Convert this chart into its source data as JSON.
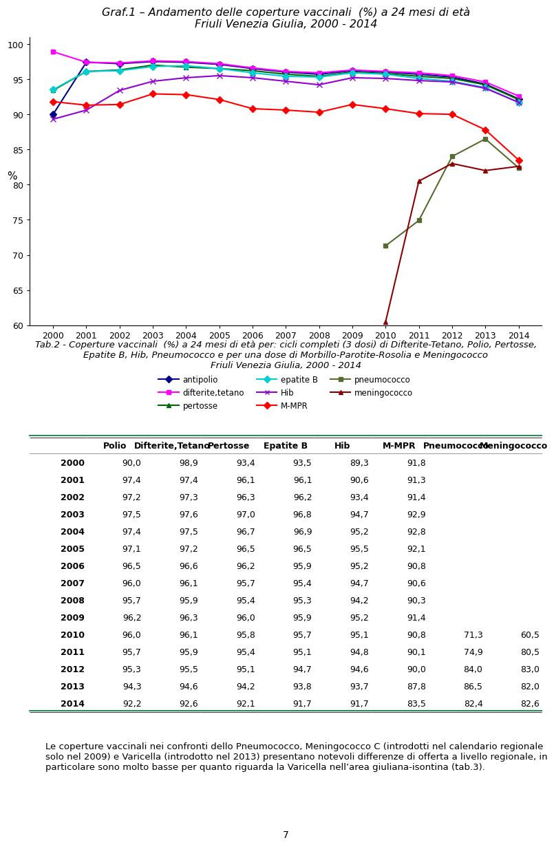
{
  "title_line1": "Graf.1 – Andamento delle coperture vaccinali  (%) a 24 mesi di età",
  "title_line2": "Friuli Venezia Giulia, 2000 - 2014",
  "years": [
    2000,
    2001,
    2002,
    2003,
    2004,
    2005,
    2006,
    2007,
    2008,
    2009,
    2010,
    2011,
    2012,
    2013,
    2014
  ],
  "series": {
    "antipolio": {
      "values": [
        90.0,
        97.4,
        97.2,
        97.5,
        97.4,
        97.1,
        96.5,
        96.0,
        95.7,
        96.2,
        96.0,
        95.7,
        95.3,
        94.3,
        92.2
      ],
      "color": "#00008B",
      "marker": "D",
      "linestyle": "-",
      "linewidth": 1.5,
      "markersize": 5,
      "label": "antipolio"
    },
    "difterite_tetano": {
      "values": [
        98.9,
        97.4,
        97.3,
        97.6,
        97.5,
        97.2,
        96.6,
        96.1,
        95.9,
        96.3,
        96.1,
        95.9,
        95.5,
        94.6,
        92.6
      ],
      "color": "#FF00FF",
      "marker": "s",
      "linestyle": "-",
      "linewidth": 1.5,
      "markersize": 5,
      "label": "difterite,tetano"
    },
    "pertosse": {
      "values": [
        93.4,
        96.1,
        96.3,
        97.0,
        96.7,
        96.5,
        96.2,
        95.7,
        95.4,
        96.0,
        95.8,
        95.4,
        95.1,
        94.2,
        92.1
      ],
      "color": "#006400",
      "marker": "^",
      "linestyle": "-",
      "linewidth": 1.5,
      "markersize": 5,
      "label": "pertosse"
    },
    "epatite_B": {
      "values": [
        93.5,
        96.1,
        96.2,
        96.8,
        96.9,
        96.5,
        95.9,
        95.4,
        95.3,
        95.9,
        95.7,
        95.1,
        94.7,
        93.8,
        91.7
      ],
      "color": "#00CED1",
      "marker": "D",
      "linestyle": "-",
      "linewidth": 1.5,
      "markersize": 5,
      "label": "epatite B"
    },
    "Hib": {
      "values": [
        89.3,
        90.6,
        93.4,
        94.7,
        95.2,
        95.5,
        95.2,
        94.7,
        94.2,
        95.2,
        95.1,
        94.8,
        94.6,
        93.7,
        91.7
      ],
      "color": "#9400D3",
      "marker": "x",
      "linestyle": "-",
      "linewidth": 1.5,
      "markersize": 6,
      "label": "Hib"
    },
    "M_MPR": {
      "values": [
        91.8,
        91.3,
        91.4,
        92.9,
        92.8,
        92.1,
        90.8,
        90.6,
        90.3,
        91.4,
        90.8,
        90.1,
        90.0,
        87.8,
        83.5
      ],
      "color": "#FF0000",
      "marker": "D",
      "linestyle": "-",
      "linewidth": 1.5,
      "markersize": 5,
      "label": "M-MPR"
    },
    "pneumococco": {
      "values": [
        null,
        null,
        null,
        null,
        null,
        null,
        null,
        null,
        null,
        null,
        71.3,
        74.9,
        84.0,
        86.5,
        82.4
      ],
      "color": "#556B2F",
      "marker": "s",
      "linestyle": "-",
      "linewidth": 1.5,
      "markersize": 5,
      "label": "pneumococco"
    },
    "meningococco": {
      "values": [
        null,
        null,
        null,
        null,
        null,
        null,
        null,
        null,
        null,
        null,
        60.5,
        80.5,
        83.0,
        82.0,
        82.6
      ],
      "color": "#8B0000",
      "marker": "^",
      "linestyle": "-",
      "linewidth": 1.5,
      "markersize": 5,
      "label": "meningococco"
    }
  },
  "ylim": [
    60,
    101
  ],
  "yticks": [
    60,
    65,
    70,
    75,
    80,
    85,
    90,
    95,
    100
  ],
  "ylabel": "%",
  "tab_title_line1": "Tab.2 - Coperture vaccinali  (%) a 24 mesi di età per: cicli completi (3 dosi) di Difterite-Tetano, Polio, Pertosse,",
  "tab_title_line2": "Epatite B, Hib, Pneumococco e per una dose di Morbillo-Parotite-Rosolia e Meningococco",
  "tab_title_line3": "Friuli Venezia Giulia, 2000 - 2014",
  "table_years": [
    2000,
    2001,
    2002,
    2003,
    2004,
    2005,
    2006,
    2007,
    2008,
    2009,
    2010,
    2011,
    2012,
    2013,
    2014
  ],
  "table_data": {
    "Polio": [
      90.0,
      97.4,
      97.2,
      97.5,
      97.4,
      97.1,
      96.5,
      96.0,
      95.7,
      96.2,
      96.0,
      95.7,
      95.3,
      94.3,
      92.2
    ],
    "Difterite,Tetano": [
      98.9,
      97.4,
      97.3,
      97.6,
      97.5,
      97.2,
      96.6,
      96.1,
      95.9,
      96.3,
      96.1,
      95.9,
      95.5,
      94.6,
      92.6
    ],
    "Pertosse": [
      93.4,
      96.1,
      96.3,
      97.0,
      96.7,
      96.5,
      96.2,
      95.7,
      95.4,
      96.0,
      95.8,
      95.4,
      95.1,
      94.2,
      92.1
    ],
    "Epatite B": [
      93.5,
      96.1,
      96.2,
      96.8,
      96.9,
      96.5,
      95.9,
      95.4,
      95.3,
      95.9,
      95.7,
      95.1,
      94.7,
      93.8,
      91.7
    ],
    "Hib": [
      89.3,
      90.6,
      93.4,
      94.7,
      95.2,
      95.5,
      95.2,
      94.7,
      94.2,
      95.2,
      95.1,
      94.8,
      94.6,
      93.7,
      91.7
    ],
    "M-MPR": [
      91.8,
      91.3,
      91.4,
      92.9,
      92.8,
      92.1,
      90.8,
      90.6,
      90.3,
      91.4,
      90.8,
      90.1,
      90.0,
      87.8,
      83.5
    ],
    "Pneumococco": [
      null,
      null,
      null,
      null,
      null,
      null,
      null,
      null,
      null,
      null,
      71.3,
      74.9,
      84.0,
      86.5,
      82.4
    ],
    "Meningococco": [
      null,
      null,
      null,
      null,
      null,
      null,
      null,
      null,
      null,
      null,
      60.5,
      80.5,
      83.0,
      82.0,
      82.6
    ]
  },
  "footer_text": "Le coperture vaccinali nei confronti dello Pneumococco, Meningococco C (introdotti nel calendario regionale\nsolo nel 2009) e Varicella (introdotto nel 2013) presentano notevoli differenze di offerta a livello regionale, in\nparticolare sono molto basse per quanto riguarda la Varicella nell’area giuliana-isontina (tab.3).",
  "page_number": "7",
  "background_color": "#FFFFFF"
}
